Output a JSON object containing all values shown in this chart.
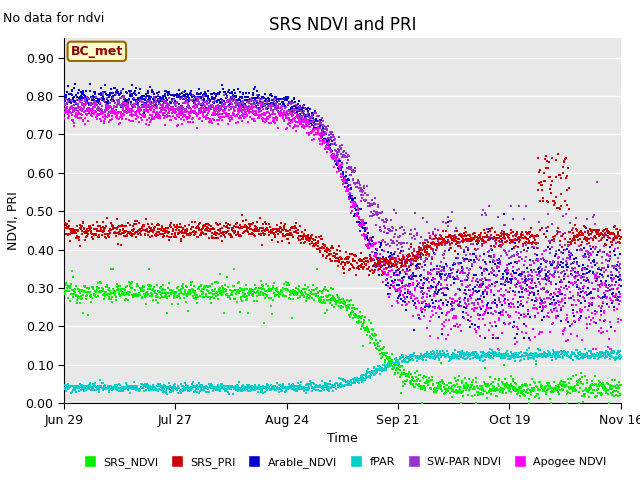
{
  "title": "SRS NDVI and PRI",
  "no_data_text": "No data for ndvi",
  "ylabel": "NDVI, PRI",
  "xlabel": "Time",
  "annotation_text": "BC_met",
  "annotation_box_color": "#ffffcc",
  "annotation_border_color": "#996600",
  "ylim": [
    0.0,
    0.95
  ],
  "yticks": [
    0.0,
    0.1,
    0.2,
    0.3,
    0.4,
    0.5,
    0.6,
    0.7,
    0.8,
    0.9
  ],
  "xtick_labels": [
    "Jun 29",
    "Jul 27",
    "Aug 24",
    "Sep 21",
    "Oct 19",
    "Nov 16"
  ],
  "colors": {
    "SRS_NDVI": "#00ee00",
    "SRS_PRI": "#cc0000",
    "Arable_NDVI": "#0000cc",
    "fPAR": "#00cccc",
    "SW_PAR_NDVI": "#9933cc",
    "Apogee_NDVI": "#ff00ff"
  },
  "legend_labels": [
    "SRS_NDVI",
    "SRS_PRI",
    "Arable_NDVI",
    "fPAR",
    "SW-PAR NDVI",
    "Apogee NDVI"
  ],
  "plot_bg_color": "#e8e8e8",
  "title_fontsize": 12,
  "axis_label_fontsize": 9,
  "tick_fontsize": 9
}
